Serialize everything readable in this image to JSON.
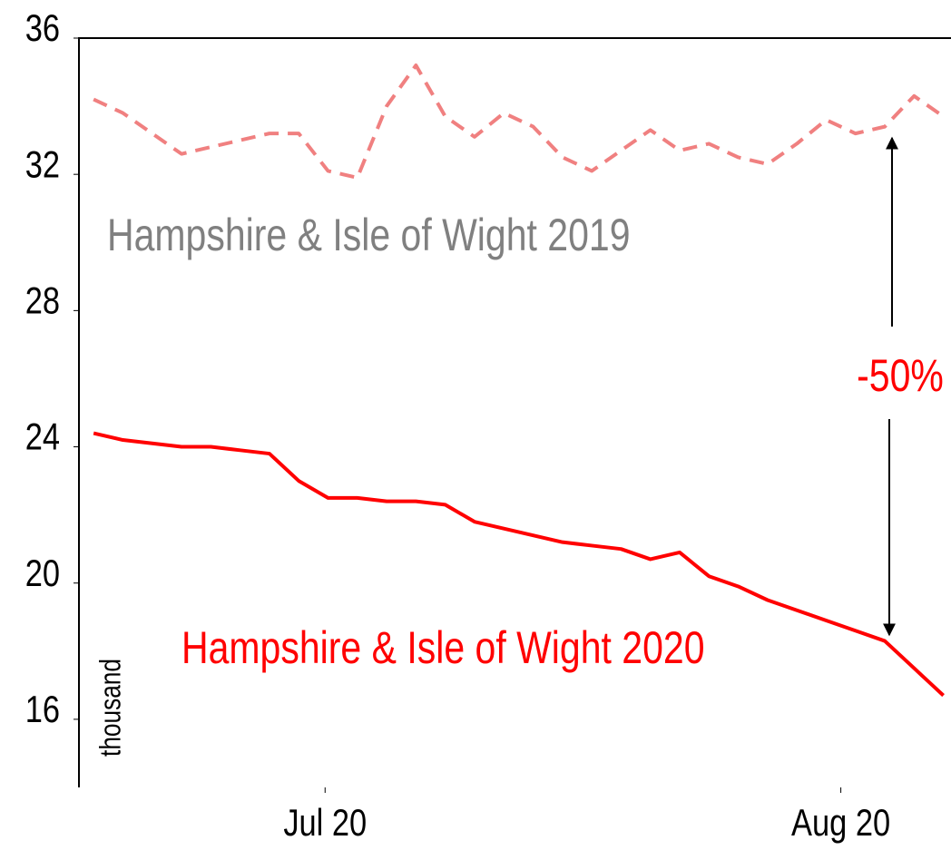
{
  "chart_data": {
    "type": "line",
    "x": [
      0,
      1,
      2,
      3,
      4,
      5,
      6,
      7,
      8,
      9,
      10,
      11,
      12,
      13,
      14,
      15,
      16,
      17,
      18,
      19,
      20,
      21,
      22,
      23,
      24,
      25,
      26,
      27,
      28,
      29
    ],
    "xlim": [
      -0.5,
      29.26
    ],
    "xticks": [
      {
        "value": 7.9,
        "label": "Jul 20"
      },
      {
        "value": 25.5,
        "label": "Aug 20"
      }
    ],
    "ylim": [
      14,
      36
    ],
    "yticks": [
      16,
      20,
      24,
      28,
      32,
      36
    ],
    "y_label": "thousand",
    "annotation": "-50%",
    "series": [
      {
        "name": "Hampshire & Isle of Wight 2019",
        "color": "#f08080",
        "label_color": "#808080",
        "dashed": true,
        "values": [
          34.2,
          33.8,
          33.2,
          32.6,
          32.8,
          33.0,
          33.2,
          33.2,
          32.1,
          31.9,
          34.0,
          35.2,
          33.7,
          33.1,
          33.8,
          33.4,
          32.5,
          32.1,
          32.7,
          33.3,
          32.7,
          32.9,
          32.5,
          32.3,
          32.9,
          33.6,
          33.2,
          33.4,
          34.3,
          33.7
        ]
      },
      {
        "name": "Hampshire & Isle of Wight 2020",
        "color": "#ff0000",
        "label_color": "#ff0000",
        "dashed": false,
        "values": [
          24.4,
          24.2,
          24.1,
          24.0,
          24.0,
          23.9,
          23.8,
          23.0,
          22.5,
          22.5,
          22.4,
          22.4,
          22.3,
          21.8,
          21.6,
          21.4,
          21.2,
          21.1,
          21.0,
          20.7,
          20.9,
          20.2,
          19.9,
          19.5,
          19.2,
          18.9,
          18.6,
          18.3,
          17.5,
          16.7
        ]
      }
    ]
  }
}
